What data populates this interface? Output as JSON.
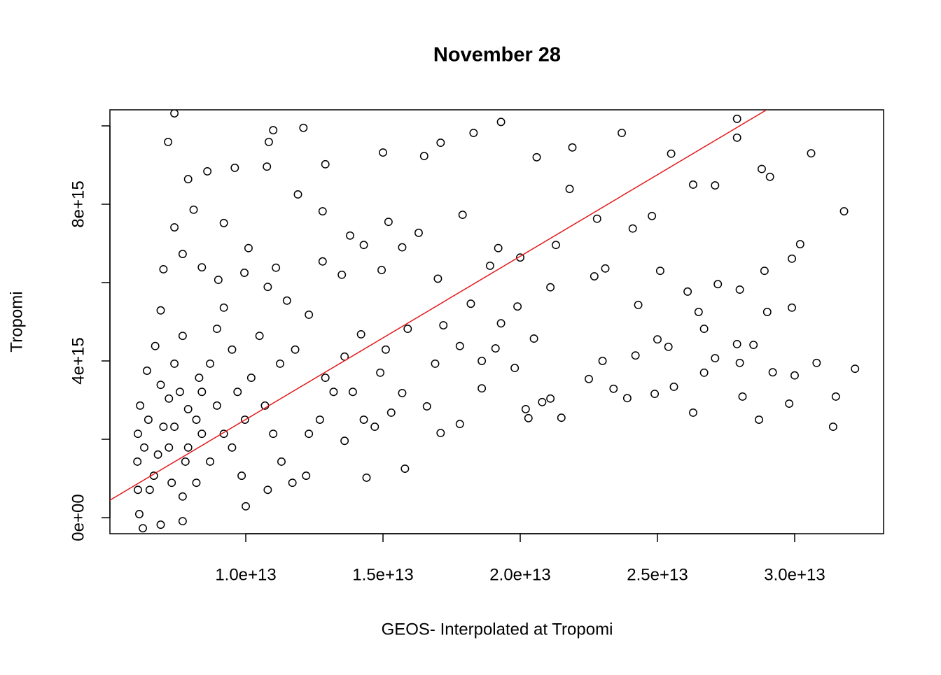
{
  "chart_data": {
    "type": "scatter",
    "title": "November 28",
    "xlabel": "GEOS- Interpolated at Tropomi",
    "ylabel": "Tropomi",
    "xlim": [
      5050000000000.0,
      33240000000000.0
    ],
    "ylim": [
      -410000000000000.0,
      1.041e+16
    ],
    "xticks": [
      {
        "value": 10000000000000.0,
        "label": "1.0e+13"
      },
      {
        "value": 15000000000000.0,
        "label": "1.5e+13"
      },
      {
        "value": 20000000000000.0,
        "label": "2.0e+13"
      },
      {
        "value": 25000000000000.0,
        "label": "2.5e+13"
      },
      {
        "value": 30000000000000.0,
        "label": "3.0e+13"
      }
    ],
    "yticks": [
      {
        "value": 0,
        "label": "0e+00"
      },
      {
        "value": 2000000000000000.0,
        "label": null
      },
      {
        "value": 4000000000000000.0,
        "label": "4e+15"
      },
      {
        "value": 6000000000000000.0,
        "label": null
      },
      {
        "value": 8000000000000000.0,
        "label": "8e+15"
      },
      {
        "value": 1e+16,
        "label": null
      }
    ],
    "color": "#000000",
    "abline": {
      "intercept": -1657000000000000.0,
      "slope": 416.4,
      "color": "#e31a1c"
    },
    "x": [
      7400000000000.0,
      7170000000000.0,
      11000000000000.0,
      12100000000000.0,
      10840000000000.0,
      12900000000000.0,
      15000000000000.0,
      16500000000000.0,
      17100000000000.0,
      18300000000000.0,
      19300000000000.0,
      20600000000000.0,
      21900000000000.0,
      23700000000000.0,
      27900000000000.0,
      30600000000000.0,
      31800000000000.0,
      30200000000000.0,
      27900000000000.0,
      28800000000000.0,
      29100000000000.0,
      25500000000000.0,
      26300000000000.0,
      27100000000000.0,
      24800000000000.0,
      24100000000000.0,
      22800000000000.0,
      21800000000000.0,
      21300000000000.0,
      20000000000000.0,
      18900000000000.0,
      19200000000000.0,
      17900000000000.0,
      16300000000000.0,
      15200000000000.0,
      14300000000000.0,
      13800000000000.0,
      12800000000000.0,
      11900000000000.0,
      10770000000000.0,
      9600000000000.0,
      8600000000000.0,
      7900000000000.0,
      8100000000000.0,
      7400000000000.0,
      9200000000000.0,
      10100000000000.0,
      11100000000000.0,
      12800000000000.0,
      13500000000000.0,
      14950000000000.0,
      15700000000000.0,
      17000000000000.0,
      18200000000000.0,
      19900000000000.0,
      21100000000000.0,
      22700000000000.0,
      23100000000000.0,
      24300000000000.0,
      25100000000000.0,
      26100000000000.0,
      27200000000000.0,
      28000000000000.0,
      28900000000000.0,
      29900000000000.0,
      29900000000000.0,
      29000000000000.0,
      26500000000000.0,
      26700000000000.0,
      25000000000000.0,
      25400000000000.0,
      27900000000000.0,
      28500000000000.0,
      28000000000000.0,
      27100000000000.0,
      26700000000000.0,
      29200000000000.0,
      30000000000000.0,
      30800000000000.0,
      32200000000000.0,
      31500000000000.0,
      31400000000000.0,
      28100000000000.0,
      28700000000000.0,
      29800000000000.0,
      26300000000000.0,
      25600000000000.0,
      24900000000000.0,
      23900000000000.0,
      23400000000000.0,
      23000000000000.0,
      24200000000000.0,
      22500000000000.0,
      21500000000000.0,
      21100000000000.0,
      20800000000000.0,
      20300000000000.0,
      20200000000000.0,
      19800000000000.0,
      20500000000000.0,
      19300000000000.0,
      19100000000000.0,
      18600000000000.0,
      17800000000000.0,
      17100000000000.0,
      16600000000000.0,
      15800000000000.0,
      14400000000000.0,
      15700000000000.0,
      14900000000000.0,
      15900000000000.0,
      17200000000000.0,
      17800000000000.0,
      18600000000000.0,
      16900000000000.0,
      15100000000000.0,
      14200000000000.0,
      13600000000000.0,
      13200000000000.0,
      12900000000000.0,
      12300000000000.0,
      11300000000000.0,
      12700000000000.0,
      13900000000000.0,
      14700000000000.0,
      13600000000000.0,
      14300000000000.0,
      15300000000000.0,
      12200000000000.0,
      10000000000000.0,
      10800000000000.0,
      11700000000000.0,
      11800000000000.0,
      12300000000000.0,
      11500000000000.0,
      10800000000000.0,
      9950000000000.0,
      9000000000000.0,
      8400000000000.0,
      7700000000000.0,
      7000000000000.0,
      6900000000000.0,
      6700000000000.0,
      6400000000000.0,
      6150000000000.0,
      6070000000000.0,
      6050000000000.0,
      6070000000000.0,
      6120000000000.0,
      6250000000000.0,
      6900000000000.0,
      7700000000000.0,
      6500000000000.0,
      6800000000000.0,
      7000000000000.0,
      7200000000000.0,
      7400000000000.0,
      7700000000000.0,
      7900000000000.0,
      8200000000000.0,
      8400000000000.0,
      8700000000000.0,
      8950000000000.0,
      9200000000000.0,
      9500000000000.0,
      9700000000000.0,
      9970000000000.0,
      10200000000000.0,
      10500000000000.0,
      10700000000000.0,
      11000000000000.0,
      11250000000000.0,
      9200000000000.0,
      8700000000000.0,
      8200000000000.0,
      7700000000000.0,
      7300000000000.0,
      6650000000000.0,
      6300000000000.0,
      6450000000000.0,
      6900000000000.0,
      7400000000000.0,
      7800000000000.0,
      8400000000000.0,
      8950000000000.0,
      9500000000000.0,
      9850000000000.0,
      7900000000000.0,
      8300000000000.0,
      7200000000000.0,
      7600000000000.0
    ],
    "y": [
      1.032e+16,
      9590000000000000.0,
      9890000000000000.0,
      9950000000000000.0,
      9590000000000000.0,
      9020000000000000.0,
      9320000000000000.0,
      9230000000000000.0,
      9570000000000000.0,
      9820000000000000.0,
      1.01e+16,
      9200000000000000.0,
      9450000000000000.0,
      9820000000000000.0,
      1.018e+16,
      9300000000000000.0,
      7820000000000000.0,
      6980000000000000.0,
      9700000000000000.0,
      8900000000000000.0,
      8700000000000000.0,
      9290000000000000.0,
      8500000000000000.0,
      8480000000000000.0,
      7700000000000000.0,
      7380000000000000.0,
      7630000000000000.0,
      8390000000000000.0,
      6960000000000000.0,
      6640000000000000.0,
      6430000000000000.0,
      6880000000000000.0,
      7730000000000000.0,
      7270000000000000.0,
      7550000000000000.0,
      6960000000000000.0,
      7200000000000000.0,
      7820000000000000.0,
      8250000000000000.0,
      8960000000000000.0,
      8930000000000000.0,
      8840000000000000.0,
      8640000000000000.0,
      7860000000000000.0,
      7410000000000000.0,
      7520000000000000.0,
      6880000000000000.0,
      6380000000000000.0,
      6540000000000000.0,
      6200000000000000.0,
      6320000000000000.0,
      6900000000000000.0,
      6100000000000000.0,
      5460000000000000.0,
      5390000000000000.0,
      5880000000000000.0,
      6160000000000000.0,
      6360000000000000.0,
      5430000000000000.0,
      6300000000000000.0,
      5770000000000000.0,
      5960000000000000.0,
      5820000000000000.0,
      6300000000000000.0,
      6610000000000000.0,
      5360000000000000.0,
      5250000000000000.0,
      5250000000000000.0,
      4820000000000000.0,
      4550000000000000.0,
      4360000000000000.0,
      4430000000000000.0,
      4410000000000000.0,
      3950000000000000.0,
      4070000000000000.0,
      3700000000000000.0,
      3710000000000000.0,
      3630000000000000.0,
      3950000000000000.0,
      3800000000000000.0,
      3090000000000000.0,
      2320000000000000.0,
      3090000000000000.0,
      2500000000000000.0,
      2910000000000000.0,
      2680000000000000.0,
      3340000000000000.0,
      3160000000000000.0,
      3050000000000000.0,
      3290000000000000.0,
      4000000000000000.0,
      4140000000000000.0,
      3540000000000000.0,
      2550000000000000.0,
      3040000000000000.0,
      2950000000000000.0,
      2540000000000000.0,
      2770000000000000.0,
      3820000000000000.0,
      4570000000000000.0,
      4960000000000000.0,
      4320000000000000.0,
      3300000000000000.0,
      2390000000000000.0,
      2160000000000000.0,
      2840000000000000.0,
      1250000000000000.0,
      1020000000000000.0,
      3180000000000000.0,
      3700000000000000.0,
      4820000000000000.0,
      4910000000000000.0,
      4380000000000000.0,
      4000000000000000.0,
      3930000000000000.0,
      4290000000000000.0,
      4680000000000000.0,
      4110000000000000.0,
      3210000000000000.0,
      3570000000000000.0,
      2140000000000000.0,
      1430000000000000.0,
      2500000000000000.0,
      3210000000000000.0,
      2320000000000000.0,
      1960000000000000.0,
      2500000000000000.0,
      2680000000000000.0,
      1070000000000000.0,
      290000000000000.0,
      710000000000000.0,
      890000000000000.0,
      4290000000000000.0,
      5180000000000000.0,
      5540000000000000.0,
      5890000000000000.0,
      6250000000000000.0,
      6070000000000000.0,
      6390000000000000.0,
      6730000000000000.0,
      6340000000000000.0,
      5290000000000000.0,
      4380000000000000.0,
      3750000000000000.0,
      2860000000000000.0,
      2140000000000000.0,
      1430000000000000.0,
      710000000000000.0,
      90000000000000.0,
      -270000000000000.0,
      -180000000000000.0,
      -90000000000000.0,
      710000000000000.0,
      1610000000000000.0,
      2320000000000000.0,
      3040000000000000.0,
      3930000000000000.0,
      4640000000000000.0,
      1790000000000000.0,
      2500000000000000.0,
      3210000000000000.0,
      3930000000000000.0,
      4820000000000000.0,
      5360000000000000.0,
      4290000000000000.0,
      3210000000000000.0,
      2500000000000000.0,
      3570000000000000.0,
      4640000000000000.0,
      2860000000000000.0,
      2140000000000000.0,
      3930000000000000.0,
      2140000000000000.0,
      1430000000000000.0,
      890000000000000.0,
      540000000000000.0,
      890000000000000.0,
      1070000000000000.0,
      1790000000000000.0,
      2500000000000000.0,
      3390000000000000.0,
      2320000000000000.0,
      1430000000000000.0,
      2140000000000000.0,
      2860000000000000.0,
      1790000000000000.0,
      1070000000000000.0,
      2770000000000000.0,
      3570000000000000.0,
      1790000000000000.0,
      3210000000000000.0
    ]
  }
}
